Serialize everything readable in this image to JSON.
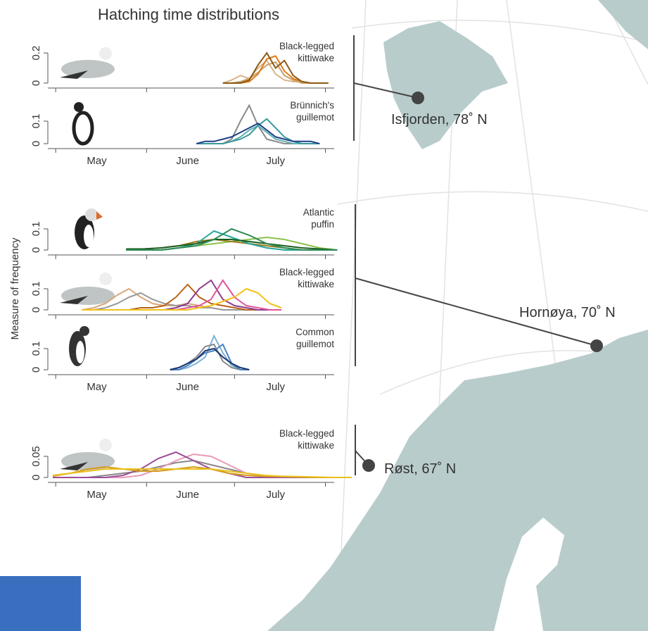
{
  "figure": {
    "title": "Hatching time distributions",
    "y_label": "Measure of frequency"
  },
  "chart_data": [
    {
      "type": "line",
      "label": [
        "Black-legged",
        "kittiwake"
      ],
      "xlim": [
        120,
        222
      ],
      "xtick_marks": [
        121,
        152,
        182,
        213
      ],
      "ylim": [
        0,
        0.29
      ],
      "yticks": [
        0,
        0.2
      ],
      "x": [
        178,
        181,
        184,
        187,
        190,
        193,
        196,
        199,
        202,
        205,
        208,
        211,
        214
      ],
      "series": [
        {
          "color": "#d9b48a",
          "values": [
            0,
            0.02,
            0.05,
            0.03,
            0.1,
            0.15,
            0.06,
            0.02,
            0.01,
            0.01,
            0,
            0,
            0
          ]
        },
        {
          "color": "#c9a06a",
          "values": [
            0,
            0,
            0.01,
            0.03,
            0.07,
            0.12,
            0.14,
            0.05,
            0.02,
            0,
            0,
            0,
            0
          ]
        },
        {
          "color": "#e07b1a",
          "values": [
            0,
            0,
            0,
            0.01,
            0.06,
            0.16,
            0.18,
            0.08,
            0.03,
            0.01,
            0,
            0,
            0
          ]
        },
        {
          "color": "#8b5a14",
          "values": [
            0,
            0,
            0,
            0.02,
            0.12,
            0.2,
            0.1,
            0.15,
            0.05,
            0.01,
            0,
            0,
            0
          ]
        }
      ]
    },
    {
      "type": "line",
      "label": [
        "Brünnich's",
        "guillemot"
      ],
      "xlim": [
        120,
        222
      ],
      "xtick_marks": [
        121,
        152,
        182,
        213
      ],
      "ylim": [
        0,
        0.2
      ],
      "yticks": [
        0,
        0.1
      ],
      "xticks": [
        {
          "value": 135,
          "label": "May"
        },
        {
          "value": 166,
          "label": "June"
        },
        {
          "value": 196,
          "label": "July"
        }
      ],
      "x": [
        169,
        172,
        175,
        178,
        181,
        184,
        187,
        190,
        193,
        196,
        199,
        202,
        205,
        208,
        211
      ],
      "series": [
        {
          "color": "#8a8a8a",
          "values": [
            0,
            0,
            0,
            0,
            0.02,
            0.1,
            0.17,
            0.08,
            0.02,
            0.01,
            0,
            0,
            0,
            0,
            0
          ]
        },
        {
          "color": "#5fb0b0",
          "values": [
            0,
            0,
            0,
            0,
            0.01,
            0.03,
            0.06,
            0.08,
            0.05,
            0.02,
            0.01,
            0,
            0,
            0,
            0
          ]
        },
        {
          "color": "#3a9a9a",
          "values": [
            0,
            0,
            0,
            0,
            0.01,
            0.02,
            0.04,
            0.08,
            0.11,
            0.07,
            0.03,
            0.01,
            0,
            0,
            0
          ]
        },
        {
          "color": "#1f3f8a",
          "values": [
            0,
            0.01,
            0.01,
            0.02,
            0.03,
            0.05,
            0.07,
            0.09,
            0.06,
            0.03,
            0.02,
            0.01,
            0.01,
            0.01,
            0
          ]
        }
      ]
    },
    {
      "type": "line",
      "label": [
        "Atlantic",
        "puffin"
      ],
      "xlim": [
        120,
        222
      ],
      "xtick_marks": [
        121,
        152,
        182,
        213
      ],
      "ylim": [
        0,
        0.21
      ],
      "yticks": [
        0,
        0.1
      ],
      "x": [
        145,
        151,
        157,
        163,
        169,
        175,
        181,
        187,
        193,
        199,
        205,
        211,
        217
      ],
      "series": [
        {
          "color": "#8bc34a",
          "values": [
            0,
            0,
            0,
            0.01,
            0.02,
            0.03,
            0.04,
            0.05,
            0.06,
            0.05,
            0.03,
            0.01,
            0
          ]
        },
        {
          "color": "#9a7b1a",
          "values": [
            0,
            0.005,
            0.01,
            0.02,
            0.04,
            0.05,
            0.04,
            0.03,
            0.02,
            0.01,
            0,
            0,
            0
          ]
        },
        {
          "color": "#26a69a",
          "values": [
            0,
            0,
            0,
            0.01,
            0.03,
            0.09,
            0.06,
            0.03,
            0.01,
            0,
            0,
            0,
            0
          ]
        },
        {
          "color": "#1b5e20",
          "values": [
            0.005,
            0.005,
            0.01,
            0.02,
            0.03,
            0.05,
            0.05,
            0.04,
            0.03,
            0.02,
            0.01,
            0.005,
            0
          ]
        },
        {
          "color": "#2e8b57",
          "values": [
            0,
            0,
            0,
            0.01,
            0.02,
            0.05,
            0.1,
            0.07,
            0.03,
            0.01,
            0,
            0,
            0
          ]
        }
      ]
    },
    {
      "type": "line",
      "label": [
        "Black-legged",
        "kittiwake"
      ],
      "xlim": [
        120,
        222
      ],
      "xtick_marks": [
        121,
        152,
        182,
        213
      ],
      "ylim": [
        0,
        0.21
      ],
      "yticks": [
        0,
        0.1
      ],
      "x": [
        130,
        134,
        138,
        142,
        146,
        150,
        154,
        158,
        162,
        166,
        170,
        174,
        178,
        182,
        186,
        190,
        194,
        198
      ],
      "series": [
        {
          "color": "#d9a77a",
          "values": [
            0,
            0.01,
            0.03,
            0.07,
            0.1,
            0.06,
            0.03,
            0.02,
            0.02,
            0.03,
            0.02,
            0.01,
            0,
            0,
            0,
            0,
            0,
            0
          ]
        },
        {
          "color": "#999999",
          "values": [
            0,
            0,
            0.01,
            0.03,
            0.06,
            0.08,
            0.05,
            0.03,
            0.02,
            0.02,
            0.01,
            0.01,
            0,
            0,
            0,
            0,
            0,
            0
          ]
        },
        {
          "color": "#b8641a",
          "values": [
            0,
            0,
            0,
            0,
            0,
            0.01,
            0.01,
            0.02,
            0.06,
            0.12,
            0.06,
            0.03,
            0.02,
            0.01,
            0,
            0,
            0,
            0
          ]
        },
        {
          "color": "#8e3a8e",
          "values": [
            0,
            0,
            0,
            0,
            0,
            0,
            0,
            0,
            0.01,
            0.03,
            0.1,
            0.14,
            0.05,
            0.02,
            0.01,
            0,
            0,
            0
          ]
        },
        {
          "color": "#e0569a",
          "values": [
            0,
            0,
            0,
            0,
            0,
            0,
            0,
            0,
            0,
            0.01,
            0.02,
            0.05,
            0.14,
            0.06,
            0.02,
            0.01,
            0,
            0
          ]
        },
        {
          "color": "#f2c218",
          "values": [
            0,
            0,
            0,
            0,
            0,
            0,
            0,
            0,
            0,
            0,
            0.01,
            0.02,
            0.04,
            0.06,
            0.1,
            0.08,
            0.03,
            0.01
          ]
        }
      ]
    },
    {
      "type": "line",
      "label": [
        "Common",
        "guillemot"
      ],
      "xlim": [
        120,
        222
      ],
      "xtick_marks": [
        121,
        152,
        182,
        213
      ],
      "ylim": [
        0,
        0.21
      ],
      "yticks": [
        0,
        0.1
      ],
      "xticks": [
        {
          "value": 135,
          "label": "May"
        },
        {
          "value": 166,
          "label": "June"
        },
        {
          "value": 196,
          "label": "July"
        }
      ],
      "x": [
        160,
        163,
        166,
        169,
        172,
        175,
        178,
        181,
        184,
        187
      ],
      "series": [
        {
          "color": "#7fb3d5",
          "values": [
            0,
            0,
            0.01,
            0.03,
            0.06,
            0.16,
            0.08,
            0.02,
            0,
            0
          ]
        },
        {
          "color": "#888888",
          "values": [
            0,
            0.01,
            0.03,
            0.06,
            0.11,
            0.12,
            0.04,
            0.01,
            0,
            0
          ]
        },
        {
          "color": "#4a7fc0",
          "values": [
            0,
            0,
            0.02,
            0.05,
            0.08,
            0.09,
            0.12,
            0.03,
            0,
            0
          ]
        },
        {
          "color": "#1a3570",
          "values": [
            0,
            0.01,
            0.03,
            0.05,
            0.09,
            0.1,
            0.06,
            0.03,
            0.01,
            0
          ]
        }
      ]
    },
    {
      "type": "line",
      "label": [
        "Black-legged",
        "kittiwake"
      ],
      "xlim": [
        120,
        222
      ],
      "xtick_marks": [
        121,
        152,
        182,
        213
      ],
      "ylim": [
        0,
        0.12
      ],
      "yticks": [
        0,
        0.05
      ],
      "xticks": [
        {
          "value": 135,
          "label": "May"
        },
        {
          "value": 166,
          "label": "June"
        },
        {
          "value": 196,
          "label": "July"
        }
      ],
      "x": [
        120,
        126,
        132,
        138,
        144,
        150,
        156,
        162,
        168,
        174,
        180,
        186,
        192,
        198,
        204,
        210,
        216,
        222
      ],
      "series": [
        {
          "color": "#888888",
          "values": [
            0,
            0,
            0,
            0.005,
            0.01,
            0.015,
            0.025,
            0.035,
            0.04,
            0.03,
            0.02,
            0.01,
            0.005,
            0,
            0,
            0,
            0,
            0
          ]
        },
        {
          "color": "#e89ab8",
          "values": [
            0,
            0,
            0,
            0,
            0,
            0.005,
            0.02,
            0.04,
            0.055,
            0.05,
            0.03,
            0.01,
            0.005,
            0,
            0,
            0,
            0,
            0
          ]
        },
        {
          "color": "#9b4f96",
          "values": [
            0,
            0,
            0,
            0,
            0.005,
            0.02,
            0.045,
            0.06,
            0.04,
            0.02,
            0.01,
            0,
            0,
            0,
            0,
            0,
            0,
            0
          ]
        },
        {
          "color": "#d49a1a",
          "values": [
            0.003,
            0.01,
            0.02,
            0.025,
            0.02,
            0.015,
            0.015,
            0.02,
            0.025,
            0.02,
            0.01,
            0.005,
            0.003,
            0.002,
            0.001,
            0,
            0,
            0
          ]
        },
        {
          "color": "#e8c020",
          "values": [
            0.005,
            0.01,
            0.015,
            0.02,
            0.02,
            0.02,
            0.02,
            0.02,
            0.02,
            0.02,
            0.015,
            0.01,
            0.005,
            0.003,
            0.002,
            0.001,
            0,
            0
          ]
        }
      ]
    }
  ],
  "map": {
    "sites": [
      {
        "label": "Isfjorden, 78˚ N"
      },
      {
        "label": "Hornøya, 70˚ N"
      },
      {
        "label": "Røst, 67˚ N"
      }
    ]
  }
}
